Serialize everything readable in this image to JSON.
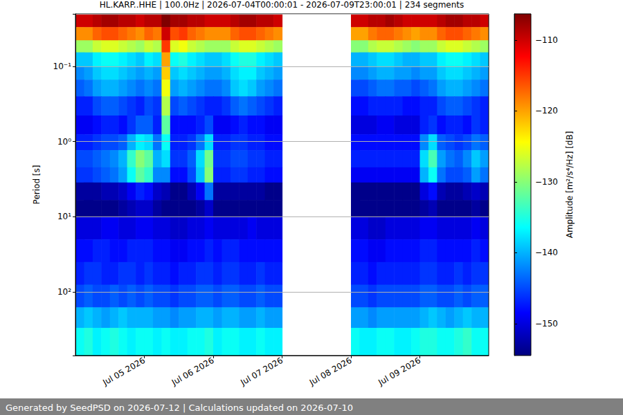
{
  "chart_data": {
    "type": "heatmap",
    "title": "HL.KARP..HHE | 100.0Hz | 2026-07-04T00:00:01 - 2026-07-09T23:00:01 | 234 segments",
    "footer": "Generated by SeedPSD on 2026-07-12 | Calculations updated on 2026-07-10",
    "y_label": "Period [s]",
    "colorbar_label": "Amplitude [m²/s⁴/Hz] [dB]",
    "log": "y",
    "grid": "y",
    "xlim": [
      "2026-07-04T00:00",
      "2026-07-10T00:00"
    ],
    "xticks": [
      {
        "value": "2026-07-05T00:00",
        "label": "Jul 05 2026"
      },
      {
        "value": "2026-07-06T00:00",
        "label": "Jul 06 2026"
      },
      {
        "value": "2026-07-07T00:00",
        "label": "Jul 07 2026"
      },
      {
        "value": "2026-07-08T00:00",
        "label": "Jul 08 2026"
      },
      {
        "value": "2026-07-09T00:00",
        "label": "Jul 09 2026"
      }
    ],
    "ylim": [
      0.02,
      700
    ],
    "yticks": [
      {
        "value": 0.1,
        "label": "10⁻¹"
      },
      {
        "value": 1,
        "label": "10⁰"
      },
      {
        "value": 10,
        "label": "10¹"
      },
      {
        "value": 100,
        "label": "10²"
      }
    ],
    "colorbar_range": [
      -154.5,
      -106.3
    ],
    "colorbar_ticks": [
      {
        "value": -150,
        "label": "−150"
      },
      {
        "value": -140,
        "label": "−140"
      },
      {
        "value": -130,
        "label": "−130"
      },
      {
        "value": -120,
        "label": "−120"
      },
      {
        "value": -110,
        "label": "−110"
      }
    ],
    "x_edges": [
      "2026-07-04T00:00",
      "2026-07-04T03:00",
      "2026-07-04T06:00",
      "2026-07-04T09:00",
      "2026-07-04T12:00",
      "2026-07-04T15:00",
      "2026-07-04T18:00",
      "2026-07-04T21:00",
      "2026-07-05T00:00",
      "2026-07-05T03:00",
      "2026-07-05T06:00",
      "2026-07-05T09:00",
      "2026-07-05T12:00",
      "2026-07-05T15:00",
      "2026-07-05T18:00",
      "2026-07-05T21:00",
      "2026-07-06T00:00",
      "2026-07-06T03:00",
      "2026-07-06T06:00",
      "2026-07-06T09:00",
      "2026-07-06T12:00",
      "2026-07-06T15:00",
      "2026-07-06T18:00",
      "2026-07-06T21:00",
      "2026-07-07T00:00",
      "2026-07-07T03:00",
      "2026-07-07T06:00",
      "2026-07-07T09:00",
      "2026-07-07T12:00",
      "2026-07-07T15:00",
      "2026-07-07T18:00",
      "2026-07-07T21:00",
      "2026-07-08T00:00",
      "2026-07-08T03:00",
      "2026-07-08T06:00",
      "2026-07-08T09:00",
      "2026-07-08T12:00",
      "2026-07-08T15:00",
      "2026-07-08T18:00",
      "2026-07-08T21:00",
      "2026-07-09T00:00",
      "2026-07-09T03:00",
      "2026-07-09T06:00",
      "2026-07-09T09:00",
      "2026-07-09T12:00",
      "2026-07-09T15:00",
      "2026-07-09T18:00",
      "2026-07-09T21:00",
      "2026-07-10T00:00"
    ],
    "period_edges": [
      0.02,
      0.03,
      0.045,
      0.065,
      0.1,
      0.15,
      0.25,
      0.45,
      0.8,
      1.3,
      2.2,
      3.5,
      6,
      10,
      20,
      40,
      80,
      160,
      300,
      700
    ],
    "cells": [
      [
        -110,
        -110,
        -109,
        -108,
        -108,
        -109,
        -109,
        -110,
        -109,
        -109,
        -106,
        -108,
        -108,
        -109,
        -109,
        -110,
        -110,
        -110,
        -109,
        -108,
        -108,
        -109,
        -109,
        -110,
        null,
        null,
        null,
        null,
        null,
        null,
        null,
        null,
        -110,
        -110,
        -109,
        -109,
        -108,
        -109,
        -110,
        -110,
        -110,
        -110,
        -109,
        -108,
        -108,
        -109,
        -109,
        -110
      ],
      [
        -119,
        -119,
        -117,
        -116,
        -116,
        -117,
        -118,
        -119,
        -117,
        -118,
        -110,
        -116,
        -115,
        -117,
        -118,
        -119,
        -119,
        -119,
        -117,
        -116,
        -116,
        -117,
        -118,
        -119,
        null,
        null,
        null,
        null,
        null,
        null,
        null,
        null,
        -120,
        -120,
        -118,
        -117,
        -117,
        -118,
        -119,
        -120,
        -119,
        -119,
        -117,
        -116,
        -116,
        -117,
        -118,
        -119
      ],
      [
        -129,
        -129,
        -127,
        -126,
        -126,
        -127,
        -128,
        -129,
        -127,
        -128,
        -115,
        -126,
        -125,
        -127,
        -128,
        -129,
        -129,
        -129,
        -127,
        -126,
        -126,
        -127,
        -128,
        -129,
        null,
        null,
        null,
        null,
        null,
        null,
        null,
        null,
        -130,
        -130,
        -128,
        -127,
        -127,
        -128,
        -129,
        -130,
        -129,
        -129,
        -127,
        -126,
        -126,
        -127,
        -128,
        -129
      ],
      [
        -139,
        -139,
        -137,
        -136,
        -136,
        -137,
        -138,
        -139,
        -137,
        -138,
        -120,
        -136,
        -135,
        -137,
        -138,
        -139,
        -139,
        -138,
        -136,
        -135,
        -135,
        -137,
        -138,
        -139,
        null,
        null,
        null,
        null,
        null,
        null,
        null,
        null,
        -140,
        -140,
        -139,
        -138,
        -138,
        -139,
        -140,
        -140,
        -139,
        -139,
        -137,
        -136,
        -136,
        -137,
        -138,
        -139
      ],
      [
        -142,
        -141,
        -139,
        -138,
        -138,
        -139,
        -140,
        -141,
        -140,
        -141,
        -122,
        -139,
        -138,
        -139,
        -140,
        -141,
        -141,
        -140,
        -138,
        -137,
        -137,
        -139,
        -140,
        -141,
        null,
        null,
        null,
        null,
        null,
        null,
        null,
        null,
        -142,
        -142,
        -141,
        -140,
        -140,
        -141,
        -141,
        -142,
        -141,
        -141,
        -139,
        -138,
        -138,
        -139,
        -140,
        -141
      ],
      [
        -144,
        -143,
        -141,
        -140,
        -140,
        -141,
        -142,
        -143,
        -142,
        -143,
        -125,
        -141,
        -140,
        -141,
        -142,
        -143,
        -143,
        -142,
        -139,
        -138,
        -139,
        -141,
        -142,
        -143,
        null,
        null,
        null,
        null,
        null,
        null,
        null,
        null,
        -145,
        -145,
        -144,
        -143,
        -143,
        -144,
        -144,
        -145,
        -144,
        -143,
        -141,
        -140,
        -140,
        -141,
        -142,
        -143
      ],
      [
        -147,
        -147,
        -145,
        -144,
        -144,
        -145,
        -146,
        -147,
        -145,
        -146,
        -128,
        -145,
        -144,
        -145,
        -146,
        -147,
        -147,
        -146,
        -144,
        -143,
        -144,
        -145,
        -146,
        -147,
        null,
        null,
        null,
        null,
        null,
        null,
        null,
        null,
        -148,
        -148,
        -147,
        -147,
        -147,
        -147,
        -148,
        -148,
        -147,
        -147,
        -145,
        -144,
        -144,
        -145,
        -146,
        -147
      ],
      [
        -149,
        -149,
        -148,
        -147,
        -147,
        -148,
        -146,
        -144,
        -144,
        -147,
        -132,
        -148,
        -148,
        -148,
        -147,
        -145,
        -149,
        -149,
        -148,
        -147,
        -148,
        -148,
        -149,
        -149,
        null,
        null,
        null,
        null,
        null,
        null,
        null,
        null,
        -150,
        -150,
        -150,
        -149,
        -149,
        -150,
        -150,
        -150,
        -147,
        -146,
        -148,
        -147,
        -147,
        -148,
        -146,
        -147
      ],
      [
        -147,
        -147,
        -146,
        -145,
        -145,
        -144,
        -140,
        -137,
        -138,
        -143,
        -136,
        -147,
        -147,
        -146,
        -143,
        -138,
        -147,
        -147,
        -146,
        -146,
        -147,
        -147,
        -148,
        -148,
        null,
        null,
        null,
        null,
        null,
        null,
        null,
        null,
        -148,
        -148,
        -148,
        -148,
        -148,
        -148,
        -148,
        -148,
        -142,
        -138,
        -144,
        -145,
        -146,
        -145,
        -143,
        -144
      ],
      [
        -145,
        -145,
        -144,
        -143,
        -142,
        -140,
        -134,
        -130,
        -132,
        -140,
        -138,
        -146,
        -146,
        -144,
        -138,
        -131,
        -146,
        -146,
        -145,
        -145,
        -146,
        -146,
        -147,
        -147,
        null,
        null,
        null,
        null,
        null,
        null,
        null,
        null,
        -147,
        -147,
        -147,
        -147,
        -147,
        -147,
        -147,
        -147,
        -138,
        -133,
        -141,
        -143,
        -144,
        -142,
        -139,
        -141
      ],
      [
        -146,
        -146,
        -145,
        -144,
        -143,
        -141,
        -136,
        -132,
        -134,
        -142,
        -142,
        -148,
        -148,
        -145,
        -139,
        -130,
        -147,
        -147,
        -146,
        -146,
        -147,
        -147,
        -148,
        -148,
        null,
        null,
        null,
        null,
        null,
        null,
        null,
        null,
        -149,
        -149,
        -149,
        -149,
        -149,
        -149,
        -149,
        -149,
        -140,
        -136,
        -143,
        -145,
        -145,
        -144,
        -141,
        -143
      ],
      [
        -153,
        -153,
        -153,
        -152,
        -152,
        -151,
        -149,
        -147,
        -148,
        -151,
        -152,
        -154,
        -154,
        -152,
        -149,
        -143,
        -153,
        -153,
        -153,
        -153,
        -153,
        -153,
        -154,
        -154,
        null,
        null,
        null,
        null,
        null,
        null,
        null,
        null,
        -154,
        -154,
        -154,
        -154,
        -154,
        -154,
        -154,
        -154,
        -150,
        -148,
        -152,
        -153,
        -153,
        -152,
        -151,
        -152
      ],
      [
        -154,
        -154,
        -154,
        -154,
        -154,
        -153,
        -152,
        -151,
        -151,
        -153,
        -154,
        -154,
        -154,
        -154,
        -153,
        -151,
        -154,
        -154,
        -154,
        -154,
        -154,
        -154,
        -154,
        -154,
        null,
        null,
        null,
        null,
        null,
        null,
        null,
        null,
        -154,
        -154,
        -154,
        -154,
        -154,
        -154,
        -154,
        -154,
        -153,
        -152,
        -154,
        -154,
        -154,
        -154,
        -153,
        -154
      ],
      [
        -150,
        -150,
        -150,
        -149,
        -149,
        -150,
        -150,
        -149,
        -149,
        -150,
        -150,
        -151,
        -151,
        -150,
        -150,
        -149,
        -150,
        -150,
        -150,
        -150,
        -149,
        -150,
        -150,
        -150,
        null,
        null,
        null,
        null,
        null,
        null,
        null,
        null,
        -150,
        -150,
        -151,
        -151,
        -150,
        -150,
        -150,
        -150,
        -149,
        -149,
        -150,
        -150,
        -150,
        -150,
        -149,
        -150
      ],
      [
        -148,
        -148,
        -147,
        -147,
        -148,
        -148,
        -147,
        -147,
        -147,
        -148,
        -148,
        -149,
        -149,
        -148,
        -148,
        -147,
        -148,
        -147,
        -147,
        -148,
        -148,
        -148,
        -148,
        -148,
        null,
        null,
        null,
        null,
        null,
        null,
        null,
        null,
        -148,
        -148,
        -149,
        -149,
        -148,
        -148,
        -148,
        -148,
        -147,
        -147,
        -148,
        -148,
        -148,
        -148,
        -147,
        -148
      ],
      [
        -147,
        -146,
        -146,
        -147,
        -147,
        -146,
        -146,
        -147,
        -146,
        -147,
        -147,
        -148,
        -147,
        -147,
        -146,
        -146,
        -147,
        -146,
        -146,
        -147,
        -147,
        -146,
        -147,
        -147,
        null,
        null,
        null,
        null,
        null,
        null,
        null,
        null,
        -147,
        -147,
        -148,
        -147,
        -147,
        -147,
        -147,
        -147,
        -146,
        -146,
        -147,
        -147,
        -146,
        -147,
        -146,
        -146
      ],
      [
        -145,
        -144,
        -145,
        -145,
        -144,
        -145,
        -144,
        -145,
        -144,
        -145,
        -145,
        -146,
        -145,
        -145,
        -144,
        -144,
        -145,
        -144,
        -144,
        -145,
        -145,
        -144,
        -145,
        -145,
        null,
        null,
        null,
        null,
        null,
        null,
        null,
        null,
        -145,
        -145,
        -146,
        -145,
        -145,
        -145,
        -145,
        -145,
        -144,
        -144,
        -145,
        -145,
        -144,
        -145,
        -144,
        -144
      ],
      [
        -140,
        -139,
        -140,
        -141,
        -140,
        -139,
        -140,
        -140,
        -140,
        -141,
        -141,
        -142,
        -141,
        -141,
        -140,
        -140,
        -141,
        -140,
        -140,
        -141,
        -141,
        -140,
        -141,
        -141,
        null,
        null,
        null,
        null,
        null,
        null,
        null,
        null,
        -141,
        -141,
        -142,
        -141,
        -141,
        -141,
        -141,
        -141,
        -140,
        -139,
        -140,
        -141,
        -140,
        -139,
        -140,
        -140
      ],
      [
        -136,
        -135,
        -137,
        -136,
        -135,
        -136,
        -137,
        -136,
        -136,
        -137,
        -136,
        -137,
        -137,
        -136,
        -136,
        -135,
        -137,
        -136,
        -136,
        -137,
        -137,
        -136,
        -137,
        -137,
        null,
        null,
        null,
        null,
        null,
        null,
        null,
        null,
        -136,
        -137,
        -137,
        -136,
        -136,
        -137,
        -137,
        -136,
        -135,
        -135,
        -136,
        -136,
        -135,
        -134,
        -136,
        -136
      ]
    ]
  }
}
